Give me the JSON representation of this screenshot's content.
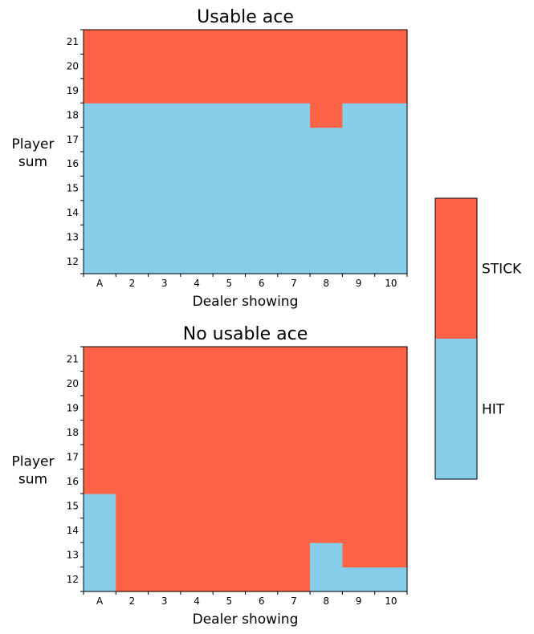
{
  "colors": {
    "stick": "#ff6347",
    "hit": "#87ceeb"
  },
  "chart_data": [
    {
      "type": "heatmap",
      "title": "Usable ace",
      "xlabel": "Dealer showing",
      "ylabel_line1": "Player",
      "ylabel_line2": "sum",
      "x_ticks": [
        "A",
        "2",
        "3",
        "4",
        "5",
        "6",
        "7",
        "8",
        "9",
        "10"
      ],
      "y_ticks": [
        "12",
        "13",
        "14",
        "15",
        "16",
        "17",
        "18",
        "19",
        "20",
        "21"
      ],
      "stick_threshold": [
        19,
        19,
        19,
        19,
        19,
        19,
        19,
        18,
        19,
        19
      ]
    },
    {
      "type": "heatmap",
      "title": "No usable ace",
      "xlabel": "Dealer showing",
      "ylabel_line1": "Player",
      "ylabel_line2": "sum",
      "x_ticks": [
        "A",
        "2",
        "3",
        "4",
        "5",
        "6",
        "7",
        "8",
        "9",
        "10"
      ],
      "y_ticks": [
        "12",
        "13",
        "14",
        "15",
        "16",
        "17",
        "18",
        "19",
        "20",
        "21"
      ],
      "stick_threshold": [
        16,
        12,
        12,
        12,
        12,
        12,
        12,
        14,
        13,
        13
      ]
    }
  ],
  "colorbar": {
    "labels": [
      "STICK",
      "HIT"
    ]
  }
}
